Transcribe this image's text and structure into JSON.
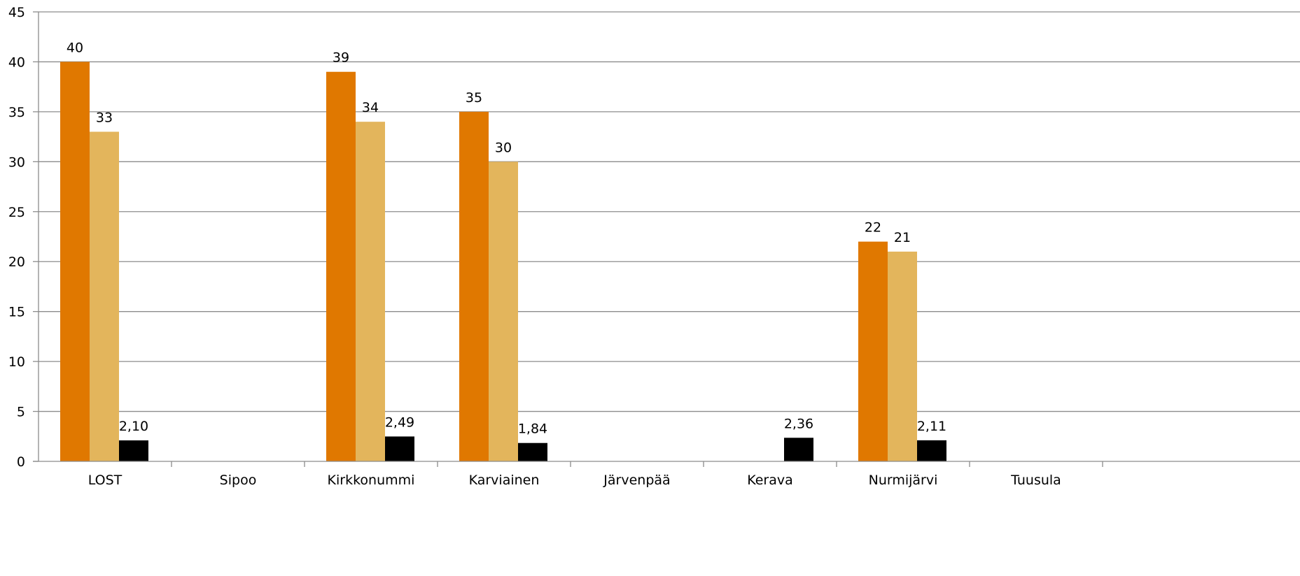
{
  "chart_data": {
    "type": "bar",
    "title": "",
    "xlabel": "",
    "ylabel": "",
    "ylim": [
      0,
      45
    ],
    "yticks": [
      "0",
      "5",
      "10",
      "15",
      "20",
      "25",
      "30",
      "35",
      "40",
      "45"
    ],
    "grid": true,
    "categories": [
      "LOST",
      "Sipoo",
      "Kirkkonummi",
      "Karviainen",
      "Järvenpää",
      "Kerava",
      "Nurmijärvi",
      "Tuusula"
    ],
    "series": [
      {
        "color": "#e07800",
        "values": [
          40,
          null,
          39,
          35,
          null,
          null,
          22,
          null
        ],
        "labels": [
          "40",
          "",
          "39",
          "35",
          "",
          "",
          "22",
          ""
        ]
      },
      {
        "color": "#e3b55c",
        "values": [
          33,
          null,
          34,
          30,
          null,
          null,
          21,
          null
        ],
        "labels": [
          "33",
          "",
          "34",
          "30",
          "",
          "",
          "21",
          ""
        ]
      },
      {
        "color": "#000000",
        "values": [
          2.1,
          null,
          2.49,
          1.84,
          null,
          2.36,
          2.11,
          null
        ],
        "labels": [
          "2,10",
          "",
          "2,49",
          "1,84",
          "",
          "2,36",
          "2,11",
          ""
        ]
      }
    ]
  }
}
